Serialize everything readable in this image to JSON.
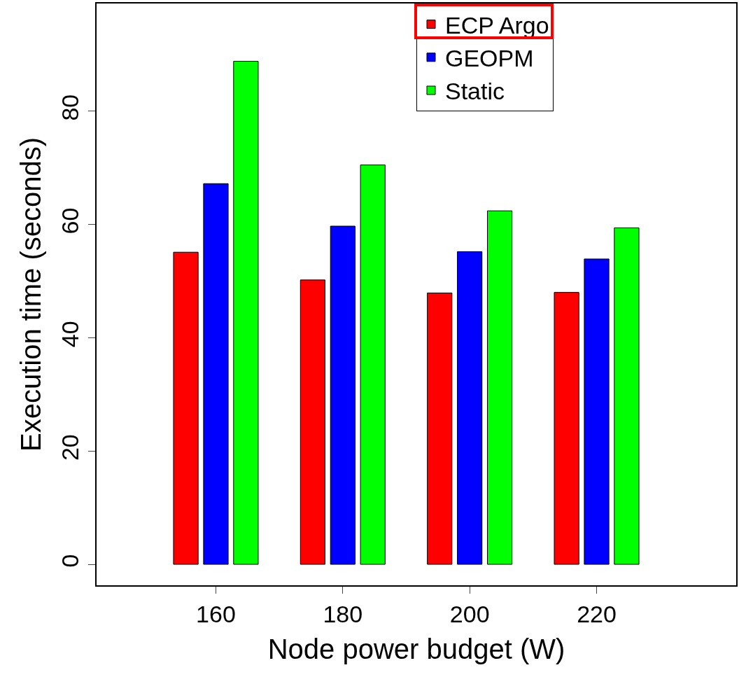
{
  "chart_data": {
    "type": "bar",
    "xlabel": "Node power budget (W)",
    "ylabel": "Execution time (seconds)",
    "categories": [
      "160",
      "180",
      "200",
      "220"
    ],
    "series": [
      {
        "name": "ECP Argo",
        "color": "#ff0000",
        "values": [
          55.1,
          50.2,
          47.9,
          48.0
        ]
      },
      {
        "name": "GEOPM",
        "color": "#0000ff",
        "values": [
          67.2,
          59.7,
          55.2,
          53.9
        ]
      },
      {
        "name": "Static",
        "color": "#00ff00",
        "values": [
          88.8,
          70.5,
          62.4,
          59.4
        ]
      }
    ],
    "ylim": [
      -3.7,
      99
    ],
    "yticks": [
      0,
      20,
      40,
      60,
      80
    ],
    "grid": false,
    "legend": "top right"
  }
}
